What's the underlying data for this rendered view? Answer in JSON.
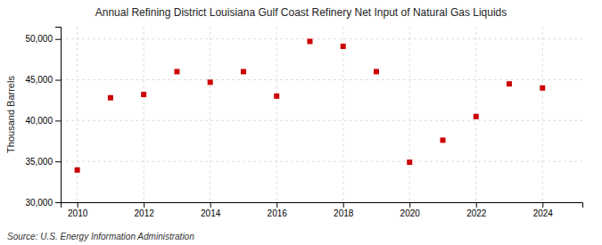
{
  "chart_data": {
    "type": "scatter",
    "title": "Annual Refining District Louisiana Gulf Coast Refinery Net Input of Natural Gas Liquids",
    "ylabel": "Thousand Barrels",
    "annotations": [
      "Source: U.S. Energy Information Administration"
    ],
    "x": [
      2010,
      2011,
      2012,
      2013,
      2014,
      2015,
      2016,
      2017,
      2018,
      2019,
      2020,
      2021,
      2022,
      2023,
      2024
    ],
    "values": [
      33950,
      42800,
      43200,
      46000,
      44700,
      46000,
      43000,
      49700,
      49100,
      46000,
      34900,
      37600,
      40500,
      44500,
      44000
    ],
    "color": "#cc0000",
    "marker": "square",
    "xlim": [
      2009.5,
      2025.2
    ],
    "xticks": [
      2010,
      2012,
      2014,
      2016,
      2018,
      2020,
      2022,
      2024
    ],
    "ylim": [
      30000,
      51500
    ],
    "yticks": [
      {
        "value": 30000,
        "label": "30,000"
      },
      {
        "value": 35000,
        "label": "35,000"
      },
      {
        "value": 40000,
        "label": "40,000"
      },
      {
        "value": 45000,
        "label": "45,000"
      },
      {
        "value": 50000,
        "label": "50,000"
      }
    ],
    "grid": true
  }
}
